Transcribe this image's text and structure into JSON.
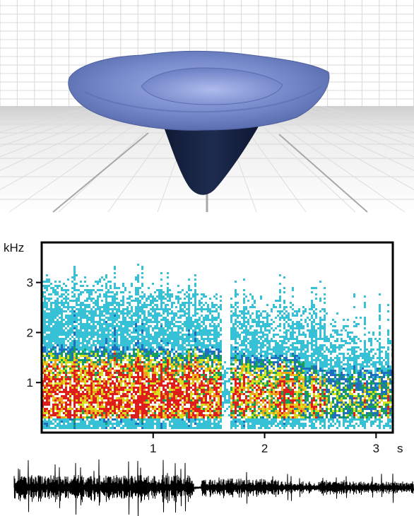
{
  "chart_data": {
    "type": "heatmap",
    "title": "",
    "y_unit_label": "kHz",
    "x_unit_label": "s",
    "x_ticks": [
      1,
      2,
      3
    ],
    "y_ticks": [
      1,
      2,
      3
    ],
    "xlim": [
      0,
      3.15
    ],
    "ylim": [
      0,
      3.8
    ],
    "colormap": [
      "#e8f6fb",
      "#36c1d6",
      "#1f6fc0",
      "#17a05a",
      "#d7e21e",
      "#f2a119",
      "#e01d1d"
    ],
    "energy_bands": [
      {
        "t_start": 0.0,
        "t_end": 1.65,
        "f_low": 0.35,
        "f_high": 1.3,
        "intensity": 0.9
      },
      {
        "t_start": 1.65,
        "t_end": 2.35,
        "f_low": 0.4,
        "f_high": 1.2,
        "intensity": 0.75
      },
      {
        "t_start": 2.35,
        "t_end": 3.15,
        "f_low": 0.4,
        "f_high": 1.0,
        "intensity": 0.5
      }
    ],
    "gap_at_s": 1.65,
    "components": [
      "3D surface render",
      "spectrogram",
      "waveform"
    ]
  }
}
